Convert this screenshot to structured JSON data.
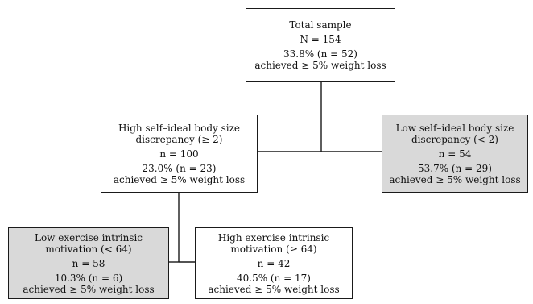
{
  "nodes": {
    "root": {
      "title": "Total sample",
      "n": "N = 154",
      "pct": "33.8% (n = 52)",
      "outcome": "achieved ≥ 5% weight loss"
    },
    "high_discrepancy": {
      "title": "High self–ideal body size\ndiscrepancy (≥ 2)",
      "n": "n = 100",
      "pct": "23.0% (n = 23)",
      "outcome": "achieved ≥ 5% weight loss"
    },
    "low_discrepancy": {
      "title": "Low self–ideal body size\ndiscrepancy (< 2)",
      "n": "n = 54",
      "pct": "53.7% (n = 29)",
      "outcome": "achieved ≥ 5% weight loss"
    },
    "low_exercise": {
      "title": "Low exercise intrinsic\nmotivation (< 64)",
      "n": "n = 58",
      "pct": "10.3% (n = 6)",
      "outcome": "achieved ≥ 5% weight loss"
    },
    "high_exercise": {
      "title": "High exercise intrinsic\nmotivation (≥ 64)",
      "n": "n = 42",
      "pct": "40.5% (n = 17)",
      "outcome": "achieved ≥ 5% weight loss"
    }
  },
  "colors": {
    "shaded_fill": "#d9d9d9",
    "plain_fill": "#ffffff",
    "border": "#1a1a1a"
  }
}
